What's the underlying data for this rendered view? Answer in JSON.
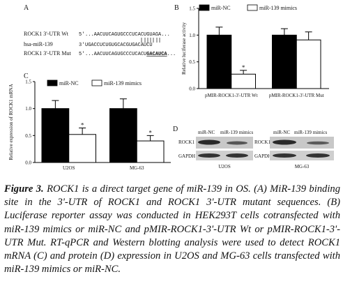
{
  "panel_a": {
    "panel": "A",
    "rows": [
      {
        "label": "ROCK1 3'-UTR Wt",
        "end": "5'",
        "sequence": "...AACUUCAGUGCCCUCACUGUAGA..."
      },
      {
        "label": "hsa-miR-139",
        "end": "3'",
        "sequence": "UGACCUCUGUGCACGUGACAUCU"
      },
      {
        "label": "ROCK1 3'-UTR Mut",
        "end": "5'",
        "sequence_start": "...AACUUCAGUGCCCUCACU",
        "sequence_mutated": "GACAUCA",
        "sequence_end": "..."
      }
    ]
  },
  "chart_data": [
    {
      "type": "bar",
      "panel": "B",
      "y_label": "Relative luciferase activity",
      "categories": [
        "pMIR-ROCK1-3'-UTR Wt",
        "pMIR-ROCK1-3'-UTR Mut"
      ],
      "series": [
        {
          "name": "miR-NC",
          "color": "#000000",
          "values": [
            1.0,
            1.0
          ],
          "errors": [
            0.15,
            0.12
          ]
        },
        {
          "name": "miR-139 mimics",
          "color": "#ffffff",
          "values": [
            0.27,
            0.91
          ],
          "errors": [
            0.07,
            0.15
          ],
          "annotations": [
            "*",
            null
          ]
        }
      ],
      "ylim": [
        0,
        1.5
      ],
      "yticks": [
        {
          "value": 0,
          "label": "0.0"
        },
        0.5,
        {
          "value": 1,
          "label": "1.0"
        },
        {
          "value": 1.5,
          "label": "1.5"
        }
      ]
    },
    {
      "type": "bar",
      "panel": "C",
      "y_label": "Relative expression of ROCK1 mRNA",
      "categories": [
        "U2OS",
        "MG-63"
      ],
      "series": [
        {
          "name": "miR-NC",
          "color": "#000000",
          "values": [
            1.0,
            1.0
          ],
          "errors": [
            0.15,
            0.18
          ]
        },
        {
          "name": "miR-139 mimics",
          "color": "#ffffff",
          "values": [
            0.52,
            0.4
          ],
          "errors": [
            0.12,
            0.1
          ],
          "annotations": [
            "*",
            "*"
          ]
        }
      ],
      "ylim": [
        0,
        1.5
      ],
      "yticks": [
        {
          "value": 0,
          "label": "0.0"
        },
        0.5,
        {
          "value": 1,
          "label": "1.0"
        },
        {
          "value": 1.5,
          "label": "1.5"
        }
      ]
    }
  ],
  "panel_d": {
    "panel": "D",
    "lanes": [
      "miR-NC",
      "miR-139 mimics"
    ],
    "proteins": [
      "ROCK1",
      "GAPDH"
    ],
    "cell_lines": [
      "U2OS",
      "MG-63"
    ]
  },
  "caption": {
    "label": "Figure 3.",
    "text": "ROCK1 is a direct target gene of miR-139 in OS. (A) MiR-139 binding site in the 3'-UTR of ROCK1 and ROCK1 3'-UTR mutant sequences. (B) Luciferase reporter assay was conducted in HEK293T cells cotransfected with miR-139 mimics or miR-NC and pMIR-ROCK1-3'-UTR Wt or pMIR-ROCK1-3'-UTR Mut. RT-qPCR and Western blotting analysis were used to detect ROCK1 mRNA (C) and protein (D) expression in U2OS and MG-63 cells transfected with miR-139 mimics or miR-NC."
  }
}
